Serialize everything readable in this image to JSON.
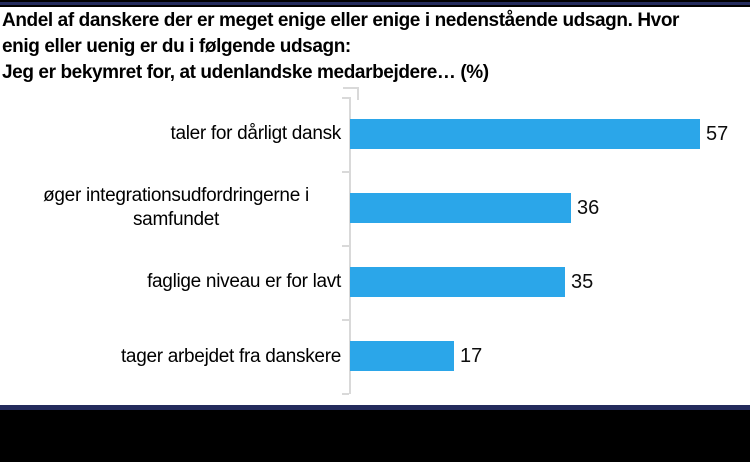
{
  "page": {
    "background": "#ffffff",
    "top_bar_color": "#000000",
    "accent_line_color": "#232b5c",
    "bottom_bar_color": "#000000"
  },
  "title": {
    "lines": [
      "Andel af danskere der er meget enige eller enige i nedenstående udsagn. Hvor",
      "enig eller uenig er du i følgende udsagn:",
      "Jeg er bekymret for, at udenlandske medarbejdere… (%)"
    ]
  },
  "chart_data": {
    "type": "bar",
    "orientation": "horizontal",
    "title": "Andel af danskere der er meget enige eller enige i nedenstående udsagn. Hvor enig eller uenig er du i følgende udsagn: Jeg er bekymret for, at udenlandske medarbejdere… (%)",
    "categories": [
      "taler for dårligt dansk",
      "øger integrationsudfordringerne i samfundet",
      "faglige niveau er for lavt",
      "tager arbejdet fra danskere"
    ],
    "values": [
      57,
      36,
      35,
      17
    ],
    "value_labels": [
      "57",
      "36",
      "35",
      "17"
    ],
    "unit": "%",
    "xlim": [
      0,
      60
    ],
    "grid": false,
    "legend": false,
    "data_labels_position": "outside-end",
    "bar_color": "#2ba6e9",
    "axis_color": "#d9d9d9",
    "label_color": "#000000"
  }
}
